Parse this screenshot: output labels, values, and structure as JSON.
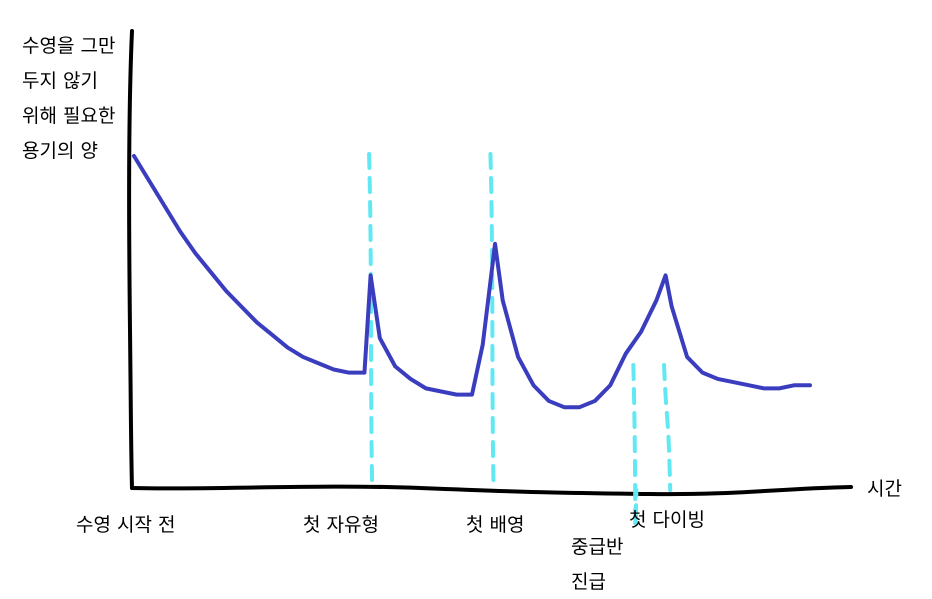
{
  "chart_data": {
    "type": "line",
    "title": "",
    "ylabel_lines": [
      "수영을 그만",
      "두지 않기",
      "위해 필요한",
      "용기의 양"
    ],
    "xlabel": "시간",
    "events": [
      {
        "label_lines": [
          "수영 시작 전"
        ]
      },
      {
        "label_lines": [
          "첫 자유형"
        ]
      },
      {
        "label_lines": [
          "첫 배영"
        ]
      },
      {
        "label_lines": [
          "중급반",
          "진급"
        ]
      },
      {
        "label_lines": [
          "첫 다이빙"
        ]
      }
    ],
    "series": [
      {
        "color": "#3b3dbf",
        "points": [
          [
            0,
            100
          ],
          [
            1,
            92
          ],
          [
            2,
            84
          ],
          [
            3,
            76
          ],
          [
            4,
            69
          ],
          [
            5,
            63
          ],
          [
            6,
            57
          ],
          [
            7,
            52
          ],
          [
            8,
            47
          ],
          [
            9,
            43
          ],
          [
            10,
            39
          ],
          [
            11,
            36
          ],
          [
            12,
            34
          ],
          [
            13,
            32
          ],
          [
            14,
            31
          ],
          [
            15,
            31
          ],
          [
            15.4,
            62
          ],
          [
            16,
            42
          ],
          [
            17,
            33
          ],
          [
            18,
            29
          ],
          [
            19,
            26
          ],
          [
            20,
            25
          ],
          [
            21,
            24
          ],
          [
            22,
            24
          ],
          [
            22.7,
            40
          ],
          [
            23.5,
            72
          ],
          [
            24,
            54
          ],
          [
            25,
            36
          ],
          [
            26,
            27
          ],
          [
            27,
            22
          ],
          [
            28,
            20
          ],
          [
            29,
            20
          ],
          [
            30,
            22
          ],
          [
            31,
            27
          ],
          [
            32,
            37
          ],
          [
            33,
            44
          ],
          [
            34,
            54
          ],
          [
            34.6,
            62
          ],
          [
            35,
            52
          ],
          [
            36,
            36
          ],
          [
            37,
            31
          ],
          [
            38,
            29
          ],
          [
            39,
            28
          ],
          [
            40,
            27
          ],
          [
            41,
            26
          ],
          [
            42,
            26
          ],
          [
            43,
            27
          ],
          [
            44,
            27
          ]
        ]
      }
    ],
    "markers": [
      {
        "color": "#61e8f2",
        "x_range": [
          15.3,
          15.5
        ]
      },
      {
        "color": "#61e8f2",
        "x_range": [
          23.2,
          23.4
        ]
      },
      {
        "color": "#61e8f2",
        "x_range": [
          32.5,
          32.7
        ]
      },
      {
        "color": "#61e8f2",
        "x_range": [
          34.5,
          34.9
        ]
      }
    ],
    "colors": {
      "axis": "#000000",
      "line": "#3b3dbf",
      "markers": "#61e8f2"
    },
    "grid": false,
    "legend": "none"
  }
}
